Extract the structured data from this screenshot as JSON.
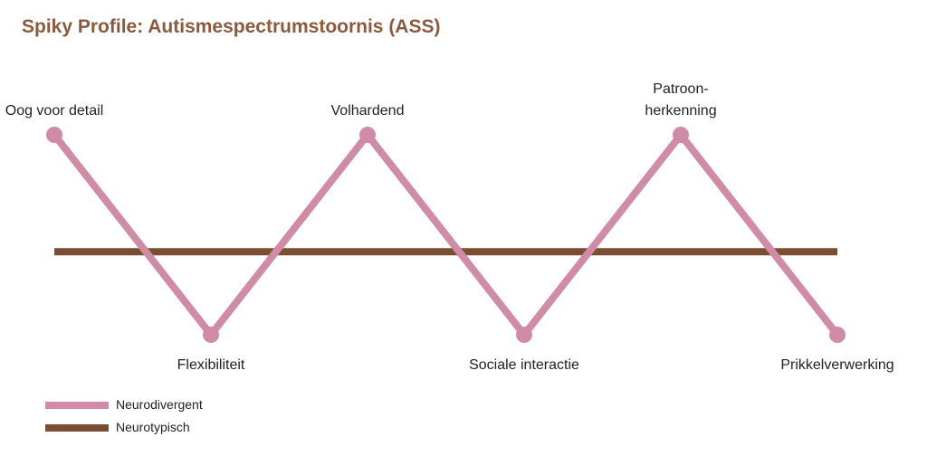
{
  "chart_data": {
    "type": "line",
    "title": "Spiky Profile: Autismespectrumstoornis (ASS)",
    "categories": [
      "Oog voor detail",
      "Flexibiliteit",
      "Volhardend",
      "Sociale interactie",
      "Patroon-\nherkenning",
      "Prikkelverwerking"
    ],
    "series": [
      {
        "name": "Neurodivergent",
        "color": "#d08ca6",
        "values": [
          1,
          -1,
          1,
          -1,
          1,
          -1
        ]
      },
      {
        "name": "Neurotypisch",
        "color": "#7a4e33",
        "values": [
          -0.17,
          -0.17,
          -0.17,
          -0.17,
          -0.17,
          -0.17
        ]
      }
    ],
    "ylim": [
      -1,
      1
    ]
  }
}
